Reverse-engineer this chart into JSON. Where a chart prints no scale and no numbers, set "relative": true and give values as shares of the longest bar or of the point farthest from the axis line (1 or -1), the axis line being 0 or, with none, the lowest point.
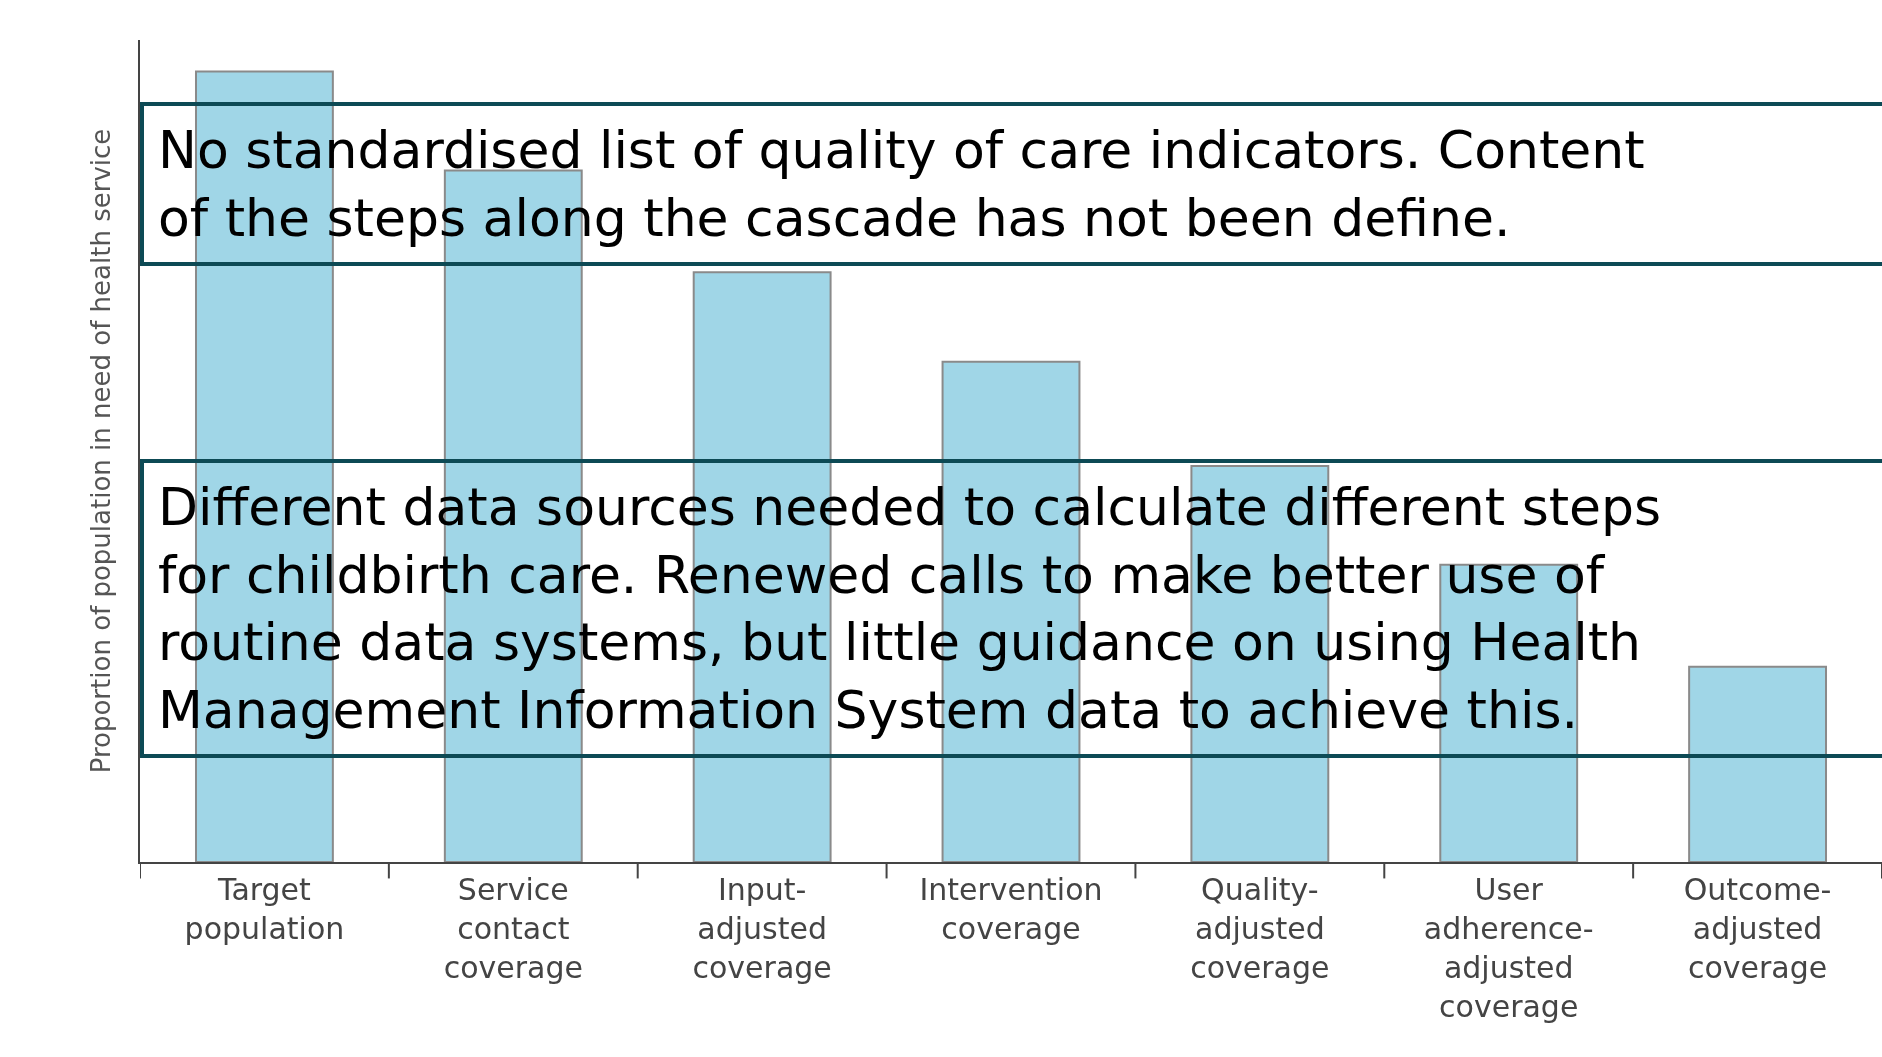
{
  "chart_data": {
    "type": "bar",
    "relative": true,
    "ylabel": "Proportion of population in need of health service",
    "categories": [
      "Target population",
      "Service contact coverage",
      "Input-adjusted coverage",
      "Intervention coverage",
      "Quality-adjusted coverage",
      "User adherence-adjusted coverage",
      "Outcome-adjusted coverage"
    ],
    "values": [
      1,
      0.875,
      0.746,
      0.633,
      0.501,
      0.376,
      0.247
    ],
    "color": "#a0d6e7",
    "annotations": [
      "No standardised list of quality of care indicators. Content of the steps along the cascade has not been define.",
      "Different data sources needed to calculate different steps for childbirth care. Renewed calls to make better use of routine data systems, but little guidance on using Health Management Information System data to achieve this."
    ],
    "legend": false
  }
}
